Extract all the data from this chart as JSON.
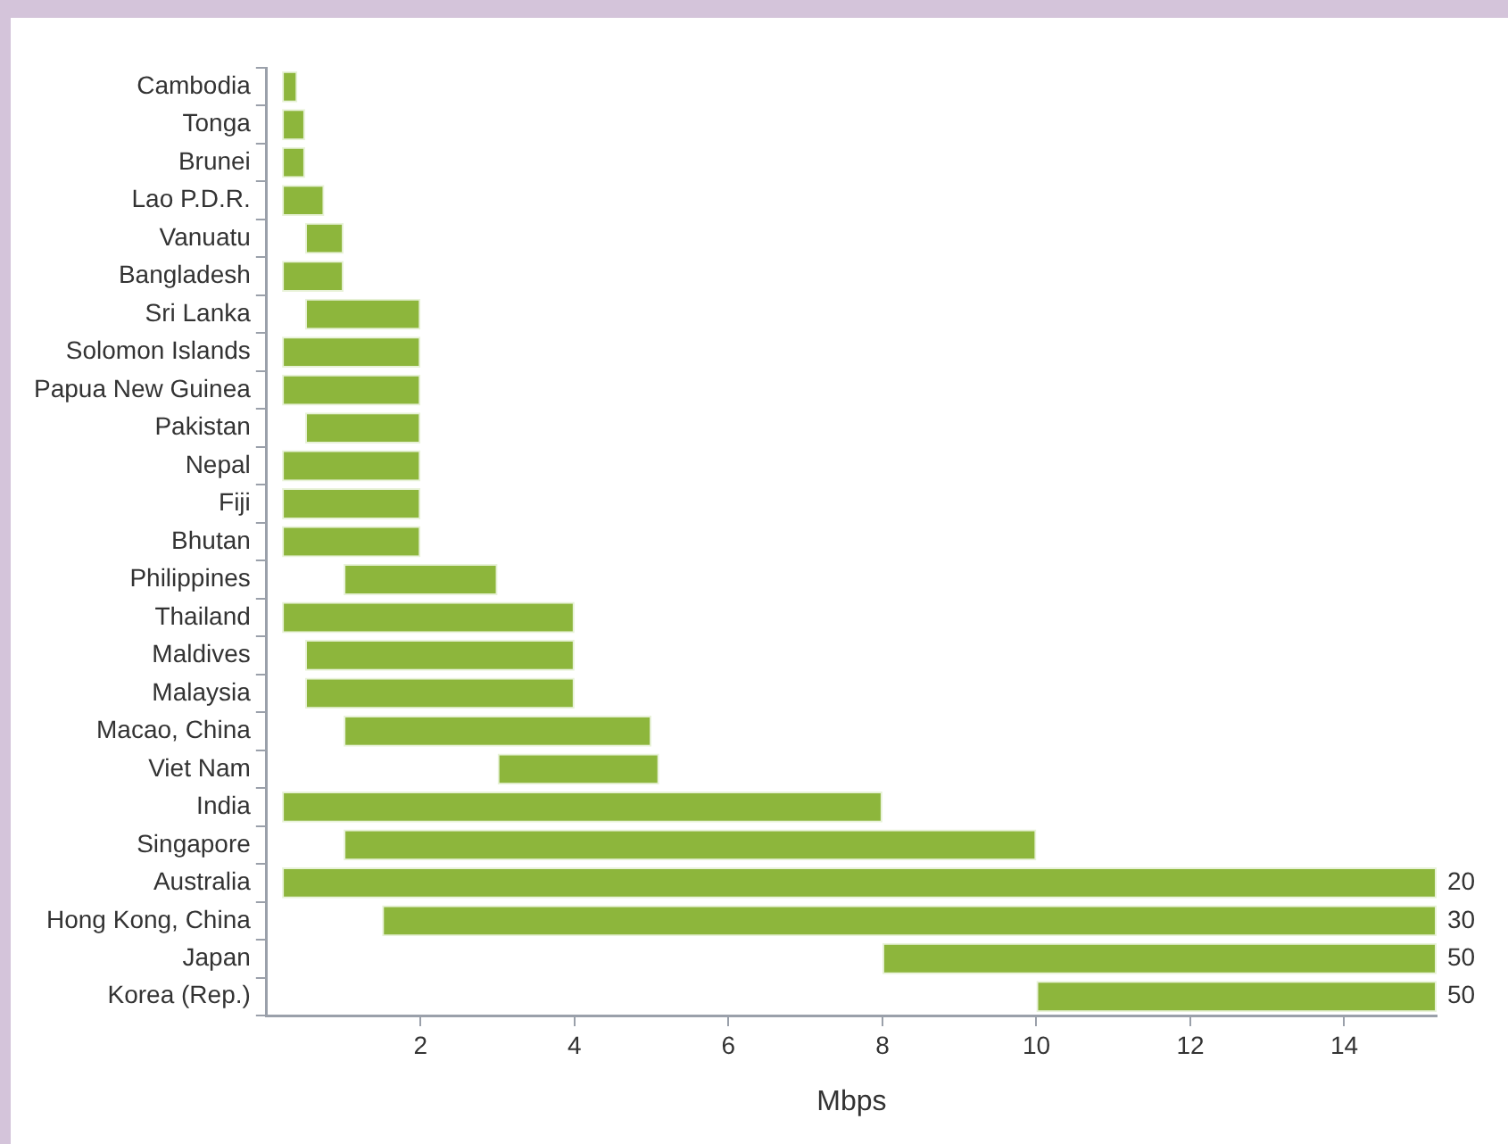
{
  "chart_data": {
    "type": "bar",
    "orientation": "horizontal",
    "xlabel": "Mbps",
    "categories": [
      "Cambodia",
      "Tonga",
      "Brunei",
      "Lao P.D.R.",
      "Vanuatu",
      "Bangladesh",
      "Sri Lanka",
      "Solomon Islands",
      "Papua New Guinea",
      "Pakistan",
      "Nepal",
      "Fiji",
      "Bhutan",
      "Philippines",
      "Thailand",
      "Maldives",
      "Malaysia",
      "Macao, China",
      "Viet Nam",
      "India",
      "Singapore",
      "Australia",
      "Hong Kong, China",
      "Japan",
      "Korea (Rep.)"
    ],
    "base": [
      0.2,
      0.2,
      0.2,
      0.2,
      0.5,
      0.2,
      0.5,
      0.2,
      0.2,
      0.5,
      0.2,
      0.2,
      0.2,
      1,
      0.2,
      0.5,
      0.5,
      1,
      3,
      0.2,
      1,
      0.2,
      1.5,
      8,
      10
    ],
    "values": [
      0.2,
      0.3,
      0.3,
      0.55,
      0.5,
      0.8,
      1.5,
      1.8,
      1.8,
      1.5,
      1.8,
      1.8,
      1.8,
      2,
      3.8,
      3.5,
      3.5,
      4,
      2.1,
      7.8,
      9,
      15,
      13.7,
      7.2,
      5.2
    ],
    "annotations": [
      "20",
      "30",
      "50",
      "50"
    ],
    "color": "#8db63c",
    "xlim": [
      0,
      15.2
    ],
    "xticks": [
      2,
      4,
      6,
      8,
      10,
      12,
      14
    ],
    "grid": false,
    "legend": false
  }
}
